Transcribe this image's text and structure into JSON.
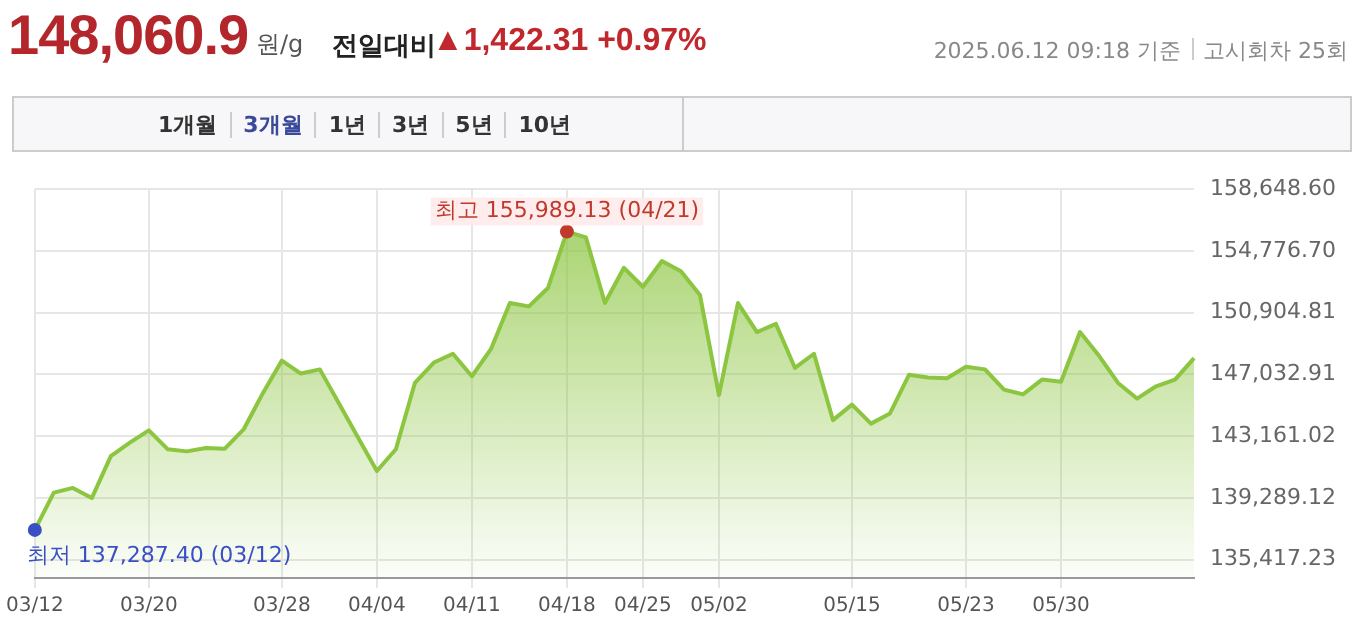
{
  "chart_data": {
    "type": "area",
    "title": "148,060.9",
    "subtitle": "원/g",
    "categories": [
      "03/12",
      null,
      null,
      null,
      null,
      null,
      "03/20",
      null,
      null,
      null,
      null,
      null,
      null,
      "03/28",
      null,
      null,
      null,
      null,
      "04/04",
      null,
      null,
      null,
      null,
      "04/11",
      null,
      null,
      null,
      null,
      "04/18",
      null,
      null,
      null,
      "04/25",
      null,
      null,
      null,
      "05/02",
      null,
      null,
      null,
      null,
      null,
      null,
      "05/15",
      null,
      null,
      null,
      null,
      null,
      "05/23",
      null,
      null,
      null,
      null,
      "05/30",
      null,
      null,
      null,
      null,
      null,
      null,
      null
    ],
    "series": [
      {
        "color": "#8cc540",
        "values": [
          137287.4,
          139620,
          139920,
          139280,
          141910,
          142760,
          143530,
          142340,
          142210,
          142420,
          142380,
          143610,
          145860,
          147900,
          147090,
          147350,
          145230,
          143100,
          140980,
          142340,
          146500,
          147780,
          148330,
          146920,
          148620,
          151510,
          151300,
          152450,
          155989.13,
          155630,
          151510,
          153720,
          152530,
          154150,
          153510,
          152020,
          145740,
          151510,
          149690,
          150200,
          147440,
          148330,
          144170,
          145140,
          143950,
          144590,
          147010,
          146840,
          146800,
          147520,
          147350,
          146080,
          145780,
          146710,
          146580,
          149690,
          148200,
          146500,
          145520,
          146290,
          146710,
          148060.9
        ]
      }
    ],
    "ylim": [
      134270,
      158648.6
    ],
    "yticks": [
      {
        "value": 135417.23,
        "label": "135,417.23"
      },
      {
        "value": 139289.12,
        "label": "139,289.12"
      },
      {
        "value": 143161.02,
        "label": "143,161.02"
      },
      {
        "value": 147032.91,
        "label": "147,032.91"
      },
      {
        "value": 150904.81,
        "label": "150,904.81"
      },
      {
        "value": 154776.7,
        "label": "154,776.70"
      },
      {
        "value": 158648.6,
        "label": "158,648.60"
      }
    ],
    "grid": true,
    "legend": false,
    "marker": "none",
    "line_style": "solid",
    "annotations": [
      "전일대비",
      "▲1,422.31 +0.97%",
      "2025.06.12 09:18 기준",
      "고시회차 25회",
      "1개월",
      "3개월",
      "1년",
      "3년",
      "5년",
      "10년",
      "최고 155,989.13 (04/21)",
      "최저 137,287.40 (03/12)"
    ]
  }
}
